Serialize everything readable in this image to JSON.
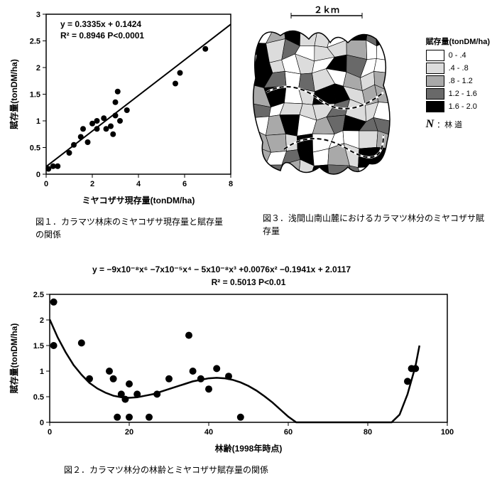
{
  "fig1": {
    "type": "scatter",
    "equation": "y = 0.3335x + 0.1424",
    "r2": "R² = 0.8946  P<0.0001",
    "xlabel": "ミヤコザサ現存量(tonDM/ha)",
    "ylabel": "賦存量(tonDM/ha)",
    "xlim": [
      0,
      8
    ],
    "xticks": [
      0,
      2,
      4,
      6,
      8
    ],
    "ylim": [
      0,
      3
    ],
    "yticks": [
      0,
      0.5,
      1,
      1.5,
      2,
      2.5,
      3
    ],
    "points": [
      [
        0.1,
        0.1
      ],
      [
        0.3,
        0.15
      ],
      [
        0.5,
        0.15
      ],
      [
        1.0,
        0.4
      ],
      [
        1.2,
        0.55
      ],
      [
        1.5,
        0.7
      ],
      [
        1.6,
        0.85
      ],
      [
        1.8,
        0.6
      ],
      [
        2.0,
        0.95
      ],
      [
        2.2,
        0.85
      ],
      [
        2.2,
        1.0
      ],
      [
        2.5,
        1.05
      ],
      [
        2.6,
        0.85
      ],
      [
        2.8,
        0.9
      ],
      [
        3.0,
        1.1
      ],
      [
        3.0,
        1.35
      ],
      [
        3.1,
        1.55
      ],
      [
        2.9,
        0.75
      ],
      [
        3.2,
        1.0
      ],
      [
        3.5,
        1.2
      ],
      [
        5.6,
        1.7
      ],
      [
        5.8,
        1.9
      ],
      [
        6.9,
        2.35
      ]
    ],
    "line_m": 0.3335,
    "line_b": 0.1424,
    "point_color": "#000000",
    "line_color": "#000000",
    "background_color": "#ffffff",
    "axis_color": "#000000",
    "point_radius": 4,
    "line_width": 2,
    "tick_fontsize": 11,
    "label_fontsize": 12,
    "eq_fontsize": 12,
    "caption": "図１．カラマツ林床のミヤコザサ現存量と賦存量の関係"
  },
  "fig3": {
    "type": "map",
    "scalebar_label": "２ｋｍ",
    "legend_title": "賦存量(tonDM/ha)",
    "legend": [
      {
        "fill": "#ffffff",
        "label": "0 - .4"
      },
      {
        "fill": "#dcdcdc",
        "label": ".4 - .8"
      },
      {
        "fill": "#a9a9a9",
        "label": ".8 - 1.2"
      },
      {
        "fill": "#696969",
        "label": "1.2 - 1.6"
      },
      {
        "fill": "#000000",
        "label": "1.6 - 2.0"
      }
    ],
    "road_label": "：林 道",
    "road_symbol": "N",
    "stroke_color": "#000000",
    "caption": "図３．浅間山南山麓におけるカラマツ林分のミヤコザサ賦存量"
  },
  "fig2": {
    "type": "scatter",
    "equation": "y = −9x10⁻⁸x⁶ −7x10⁻⁵x⁴ − 5x10⁻⁸x³ +0.0076x² −0.1941x + 2.0117",
    "r2": "R² = 0.5013  P<0.01",
    "xlabel": "林齢(1998年時点)",
    "ylabel": "賦存量(tonDM/ha)",
    "xlim": [
      0,
      100
    ],
    "xticks": [
      0,
      20,
      40,
      60,
      80,
      100
    ],
    "ylim": [
      0,
      2.5
    ],
    "yticks": [
      0,
      0.5,
      1,
      1.5,
      2,
      2.5
    ],
    "points": [
      [
        1,
        2.35
      ],
      [
        1,
        1.5
      ],
      [
        8,
        1.55
      ],
      [
        10,
        0.85
      ],
      [
        15,
        1.0
      ],
      [
        16,
        0.85
      ],
      [
        17,
        0.1
      ],
      [
        18,
        0.55
      ],
      [
        19,
        0.45
      ],
      [
        20,
        0.1
      ],
      [
        20,
        0.75
      ],
      [
        22,
        0.55
      ],
      [
        25,
        0.1
      ],
      [
        27,
        0.55
      ],
      [
        30,
        0.85
      ],
      [
        35,
        1.7
      ],
      [
        36,
        1.0
      ],
      [
        38,
        0.85
      ],
      [
        40,
        0.65
      ],
      [
        42,
        1.05
      ],
      [
        45,
        0.9
      ],
      [
        48,
        0.1
      ],
      [
        90,
        0.8
      ],
      [
        91,
        1.05
      ],
      [
        92,
        1.05
      ]
    ],
    "curve": [
      [
        0,
        2.01
      ],
      [
        2,
        1.66
      ],
      [
        4,
        1.37
      ],
      [
        6,
        1.12
      ],
      [
        8,
        0.93
      ],
      [
        10,
        0.77
      ],
      [
        12,
        0.66
      ],
      [
        14,
        0.58
      ],
      [
        16,
        0.52
      ],
      [
        18,
        0.49
      ],
      [
        20,
        0.48
      ],
      [
        22,
        0.49
      ],
      [
        24,
        0.52
      ],
      [
        26,
        0.55
      ],
      [
        28,
        0.6
      ],
      [
        30,
        0.65
      ],
      [
        32,
        0.7
      ],
      [
        34,
        0.75
      ],
      [
        36,
        0.8
      ],
      [
        38,
        0.83
      ],
      [
        40,
        0.86
      ],
      [
        42,
        0.87
      ],
      [
        44,
        0.86
      ],
      [
        46,
        0.83
      ],
      [
        48,
        0.78
      ],
      [
        50,
        0.71
      ],
      [
        52,
        0.62
      ],
      [
        54,
        0.51
      ],
      [
        56,
        0.39
      ],
      [
        58,
        0.25
      ],
      [
        60,
        0.11
      ],
      [
        62,
        0.0
      ],
      [
        86,
        0.0
      ],
      [
        88,
        0.15
      ],
      [
        90,
        0.55
      ],
      [
        92,
        1.1
      ],
      [
        93,
        1.5
      ]
    ],
    "point_color": "#000000",
    "line_color": "#000000",
    "background_color": "#ffffff",
    "axis_color": "#000000",
    "point_radius": 5,
    "line_width": 2.5,
    "tick_fontsize": 11,
    "label_fontsize": 12,
    "eq_fontsize": 12,
    "caption": "図２．カラマツ林分の林齢とミヤコザサ賦存量の関係"
  }
}
